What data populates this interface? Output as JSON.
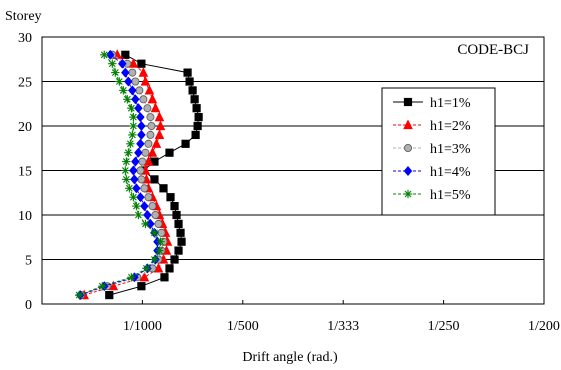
{
  "chart_data": {
    "type": "line",
    "ylabel": "Storey",
    "xlabel": "Drift angle (rad.)",
    "annotation": "CODE-BCJ",
    "x_scale": "reciprocal",
    "xlim": [
      0,
      0.005
    ],
    "ylim": [
      0,
      30
    ],
    "grid": "horizontal",
    "legend_position": "right",
    "x_ticks": [
      {
        "value": 0.001,
        "label": "1/1000"
      },
      {
        "value": 0.002,
        "label": "1/500"
      },
      {
        "value": 0.003,
        "label": "1/333"
      },
      {
        "value": 0.004,
        "label": "1/250"
      },
      {
        "value": 0.005,
        "label": "1/200"
      }
    ],
    "y_ticks": [
      "0",
      "5",
      "10",
      "15",
      "20",
      "25",
      "30"
    ],
    "series": [
      {
        "name": "h1=1%",
        "color": "#000000",
        "marker": "square",
        "points": [
          [
            0.00067,
            1
          ],
          [
            0.00099,
            2
          ],
          [
            0.00122,
            3
          ],
          [
            0.00127,
            4
          ],
          [
            0.00132,
            5
          ],
          [
            0.00136,
            6
          ],
          [
            0.00139,
            7
          ],
          [
            0.00138,
            8
          ],
          [
            0.00136,
            9
          ],
          [
            0.00134,
            10
          ],
          [
            0.00132,
            11
          ],
          [
            0.00128,
            12
          ],
          [
            0.00121,
            13
          ],
          [
            0.00112,
            14
          ],
          [
            0.00101,
            15
          ],
          [
            0.00112,
            16
          ],
          [
            0.00127,
            17
          ],
          [
            0.00143,
            18
          ],
          [
            0.00153,
            19
          ],
          [
            0.00155,
            20
          ],
          [
            0.00156,
            21
          ],
          [
            0.00154,
            22
          ],
          [
            0.00152,
            23
          ],
          [
            0.0015,
            24
          ],
          [
            0.00147,
            25
          ],
          [
            0.00145,
            26
          ],
          [
            0.00099,
            27
          ],
          [
            0.00083,
            28
          ]
        ]
      },
      {
        "name": "h1=2%",
        "color": "#ff0000",
        "marker": "triangle",
        "points": [
          [
            0.00042,
            1
          ],
          [
            0.00071,
            2
          ],
          [
            0.00102,
            3
          ],
          [
            0.00116,
            4
          ],
          [
            0.00121,
            5
          ],
          [
            0.00124,
            6
          ],
          [
            0.00125,
            7
          ],
          [
            0.00123,
            8
          ],
          [
            0.0012,
            9
          ],
          [
            0.00117,
            10
          ],
          [
            0.00114,
            11
          ],
          [
            0.0011,
            12
          ],
          [
            0.00106,
            13
          ],
          [
            0.00104,
            14
          ],
          [
            0.00103,
            15
          ],
          [
            0.00106,
            16
          ],
          [
            0.0011,
            17
          ],
          [
            0.00114,
            18
          ],
          [
            0.00117,
            19
          ],
          [
            0.00118,
            20
          ],
          [
            0.00117,
            21
          ],
          [
            0.00113,
            22
          ],
          [
            0.0011,
            23
          ],
          [
            0.00107,
            24
          ],
          [
            0.00103,
            25
          ],
          [
            0.00101,
            26
          ],
          [
            0.00091,
            27
          ],
          [
            0.00075,
            28
          ]
        ]
      },
      {
        "name": "h1=3%",
        "color": "#b0b0b0",
        "marker": "circle",
        "points": [
          [
            0.00039,
            1
          ],
          [
            0.00065,
            2
          ],
          [
            0.00095,
            3
          ],
          [
            0.0011,
            4
          ],
          [
            0.00116,
            5
          ],
          [
            0.00119,
            6
          ],
          [
            0.00121,
            7
          ],
          [
            0.00119,
            8
          ],
          [
            0.00116,
            9
          ],
          [
            0.00113,
            10
          ],
          [
            0.0011,
            11
          ],
          [
            0.00106,
            12
          ],
          [
            0.00102,
            13
          ],
          [
            0.00099,
            14
          ],
          [
            0.00098,
            15
          ],
          [
            0.001,
            16
          ],
          [
            0.00103,
            17
          ],
          [
            0.00106,
            18
          ],
          [
            0.00108,
            19
          ],
          [
            0.00109,
            20
          ],
          [
            0.00108,
            21
          ],
          [
            0.00105,
            22
          ],
          [
            0.00101,
            23
          ],
          [
            0.00097,
            24
          ],
          [
            0.00093,
            25
          ],
          [
            0.0009,
            26
          ],
          [
            0.00085,
            27
          ],
          [
            0.0007,
            28
          ]
        ]
      },
      {
        "name": "h1=4%",
        "color": "#0000ff",
        "marker": "diamond",
        "points": [
          [
            0.00038,
            1
          ],
          [
            0.00062,
            2
          ],
          [
            0.00092,
            3
          ],
          [
            0.00105,
            4
          ],
          [
            0.00113,
            5
          ],
          [
            0.00115,
            6
          ],
          [
            0.00115,
            7
          ],
          [
            0.00112,
            8
          ],
          [
            0.00108,
            9
          ],
          [
            0.00105,
            10
          ],
          [
            0.00102,
            11
          ],
          [
            0.00098,
            12
          ],
          [
            0.00094,
            13
          ],
          [
            0.00092,
            14
          ],
          [
            0.00091,
            15
          ],
          [
            0.00093,
            16
          ],
          [
            0.00096,
            17
          ],
          [
            0.00098,
            18
          ],
          [
            0.00099,
            19
          ],
          [
            0.00099,
            20
          ],
          [
            0.00098,
            21
          ],
          [
            0.00096,
            22
          ],
          [
            0.00093,
            23
          ],
          [
            0.0009,
            24
          ],
          [
            0.00086,
            25
          ],
          [
            0.00083,
            26
          ],
          [
            0.0008,
            27
          ],
          [
            0.00068,
            28
          ]
        ]
      },
      {
        "name": "h1=5%",
        "color": "#008000",
        "marker": "asterisk",
        "points": [
          [
            0.00037,
            1
          ],
          [
            0.0006,
            2
          ],
          [
            0.00089,
            3
          ],
          [
            0.00104,
            4
          ],
          [
            0.00112,
            5
          ],
          [
            0.00117,
            6
          ],
          [
            0.00118,
            7
          ],
          [
            0.00112,
            8
          ],
          [
            0.00103,
            9
          ],
          [
            0.00096,
            10
          ],
          [
            0.00094,
            11
          ],
          [
            0.00091,
            12
          ],
          [
            0.00087,
            13
          ],
          [
            0.00084,
            14
          ],
          [
            0.00083,
            15
          ],
          [
            0.00084,
            16
          ],
          [
            0.00086,
            17
          ],
          [
            0.00088,
            18
          ],
          [
            0.0009,
            19
          ],
          [
            0.00091,
            20
          ],
          [
            0.00091,
            21
          ],
          [
            0.00089,
            22
          ],
          [
            0.00085,
            23
          ],
          [
            0.00081,
            24
          ],
          [
            0.00077,
            25
          ],
          [
            0.00073,
            26
          ],
          [
            0.0007,
            27
          ],
          [
            0.00062,
            28
          ]
        ]
      }
    ]
  }
}
